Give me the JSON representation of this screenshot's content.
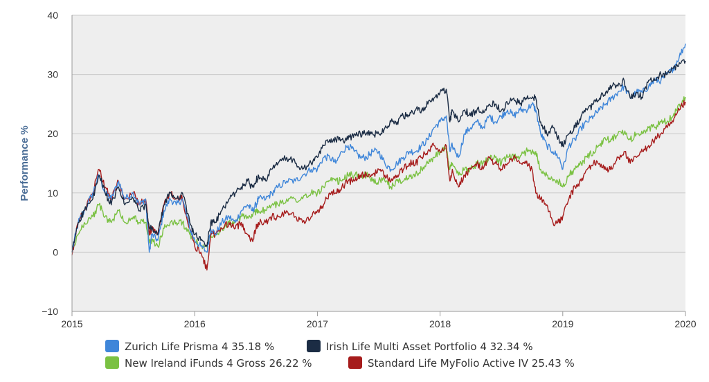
{
  "chart_data": {
    "type": "line",
    "title": "",
    "xlabel": "",
    "ylabel": "Performance %",
    "xlim": [
      2015,
      2020
    ],
    "ylim": [
      -10,
      40
    ],
    "x_ticks": [
      "2015",
      "2016",
      "2017",
      "2018",
      "2019",
      "2020"
    ],
    "y_ticks": [
      "40",
      "30",
      "20",
      "10",
      "0",
      "−10"
    ],
    "grid": true,
    "legend_position": "bottom",
    "series": [
      {
        "name": "Zurich Life Prisma 4 35.18 %",
        "color": "#3f86d9",
        "x": [
          2015.0,
          2015.05,
          2015.1,
          2015.17,
          2015.22,
          2015.27,
          2015.32,
          2015.38,
          2015.43,
          2015.5,
          2015.55,
          2015.6,
          2015.63,
          2015.65,
          2015.7,
          2015.75,
          2015.8,
          2015.85,
          2015.9,
          2015.96,
          2016.0,
          2016.05,
          2016.1,
          2016.13,
          2016.17,
          2016.22,
          2016.28,
          2016.33,
          2016.38,
          2016.43,
          2016.47,
          2016.5,
          2016.52,
          2016.58,
          2016.63,
          2016.68,
          2016.75,
          2016.82,
          2016.88,
          2016.95,
          2017.0,
          2017.05,
          2017.1,
          2017.15,
          2017.2,
          2017.25,
          2017.3,
          2017.35,
          2017.4,
          2017.45,
          2017.5,
          2017.55,
          2017.6,
          2017.65,
          2017.7,
          2017.75,
          2017.8,
          2017.85,
          2017.9,
          2017.95,
          2018.0,
          2018.05,
          2018.08,
          2018.1,
          2018.15,
          2018.2,
          2018.25,
          2018.3,
          2018.35,
          2018.4,
          2018.45,
          2018.5,
          2018.55,
          2018.6,
          2018.65,
          2018.7,
          2018.75,
          2018.78,
          2018.82,
          2018.87,
          2018.92,
          2018.97,
          2019.0,
          2019.05,
          2019.1,
          2019.15,
          2019.2,
          2019.25,
          2019.3,
          2019.35,
          2019.4,
          2019.45,
          2019.5,
          2019.55,
          2019.6,
          2019.65,
          2019.7,
          2019.75,
          2019.8,
          2019.85,
          2019.9,
          2019.95,
          2020.0
        ],
        "y": [
          0,
          5,
          7,
          10,
          13,
          10,
          9,
          12,
          9,
          10,
          8,
          9,
          0,
          3,
          2,
          7,
          9,
          8,
          9,
          4,
          2,
          1,
          0,
          4,
          3,
          5,
          6,
          5,
          7,
          8,
          7,
          8,
          9,
          9,
          10,
          11,
          12,
          12,
          13,
          14,
          14,
          16,
          16,
          15,
          17,
          18,
          17,
          16,
          16,
          17,
          17,
          15,
          14,
          15,
          16,
          17,
          17,
          18,
          19,
          21,
          22,
          23,
          17,
          18,
          16,
          20,
          21,
          22,
          21,
          23,
          22,
          23,
          24,
          23,
          24,
          24,
          25,
          24,
          20,
          18,
          17,
          16,
          14,
          18,
          19,
          21,
          22,
          23,
          24,
          25,
          26,
          27,
          28,
          26,
          27,
          27,
          28,
          29,
          29,
          30,
          31,
          33,
          35.2
        ]
      },
      {
        "name": "Irish Life Multi Asset Portfolio 4 32.34 %",
        "color": "#1b2c44",
        "x": [
          2015.0,
          2015.05,
          2015.1,
          2015.17,
          2015.22,
          2015.27,
          2015.32,
          2015.38,
          2015.43,
          2015.5,
          2015.55,
          2015.6,
          2015.63,
          2015.65,
          2015.7,
          2015.75,
          2015.8,
          2015.85,
          2015.9,
          2015.96,
          2016.0,
          2016.05,
          2016.1,
          2016.13,
          2016.17,
          2016.22,
          2016.28,
          2016.33,
          2016.38,
          2016.43,
          2016.47,
          2016.5,
          2016.52,
          2016.58,
          2016.63,
          2016.68,
          2016.75,
          2016.82,
          2016.88,
          2016.95,
          2017.0,
          2017.05,
          2017.1,
          2017.15,
          2017.2,
          2017.25,
          2017.3,
          2017.35,
          2017.4,
          2017.45,
          2017.5,
          2017.55,
          2017.6,
          2017.65,
          2017.7,
          2017.75,
          2017.8,
          2017.85,
          2017.9,
          2017.95,
          2018.0,
          2018.05,
          2018.08,
          2018.1,
          2018.15,
          2018.2,
          2018.25,
          2018.3,
          2018.35,
          2018.4,
          2018.45,
          2018.5,
          2018.55,
          2018.6,
          2018.65,
          2018.7,
          2018.75,
          2018.78,
          2018.82,
          2018.87,
          2018.92,
          2018.97,
          2019.0,
          2019.05,
          2019.1,
          2019.15,
          2019.2,
          2019.25,
          2019.3,
          2019.35,
          2019.4,
          2019.45,
          2019.5,
          2019.55,
          2019.6,
          2019.65,
          2019.7,
          2019.75,
          2019.8,
          2019.85,
          2019.9,
          2019.95,
          2020.0
        ],
        "y": [
          0,
          5,
          7,
          9,
          13,
          10,
          8,
          11,
          8,
          9,
          7,
          8,
          4,
          4,
          3,
          8,
          10,
          9,
          10,
          5,
          3,
          2,
          1,
          5,
          5,
          7,
          9,
          10,
          11,
          12,
          11,
          12,
          13,
          12,
          14,
          15,
          16,
          15,
          14,
          15,
          16,
          18,
          19,
          19,
          19,
          19,
          20,
          20,
          20,
          20,
          20,
          21,
          22,
          22,
          23,
          23,
          24,
          24,
          25,
          26,
          27,
          27.5,
          22,
          24,
          22,
          24,
          23,
          24,
          24,
          25,
          25,
          24,
          25,
          26,
          25,
          26,
          26,
          26,
          22,
          20,
          21,
          19,
          18,
          20,
          21,
          23,
          24,
          25,
          26,
          27,
          28,
          28,
          29,
          26,
          27,
          26,
          29,
          29,
          30,
          30,
          31,
          32,
          32.3
        ]
      },
      {
        "name": "New Ireland iFunds 4 Gross 26.22 %",
        "color": "#7ac142",
        "x": [
          2015.0,
          2015.05,
          2015.1,
          2015.17,
          2015.22,
          2015.27,
          2015.32,
          2015.38,
          2015.43,
          2015.5,
          2015.55,
          2015.6,
          2015.63,
          2015.65,
          2015.7,
          2015.75,
          2015.8,
          2015.85,
          2015.9,
          2015.96,
          2016.0,
          2016.05,
          2016.1,
          2016.13,
          2016.17,
          2016.22,
          2016.28,
          2016.33,
          2016.38,
          2016.43,
          2016.47,
          2016.5,
          2016.52,
          2016.58,
          2016.63,
          2016.68,
          2016.75,
          2016.82,
          2016.88,
          2016.95,
          2017.0,
          2017.05,
          2017.1,
          2017.15,
          2017.2,
          2017.25,
          2017.3,
          2017.35,
          2017.4,
          2017.45,
          2017.5,
          2017.55,
          2017.6,
          2017.65,
          2017.7,
          2017.75,
          2017.8,
          2017.85,
          2017.9,
          2017.95,
          2018.0,
          2018.05,
          2018.08,
          2018.1,
          2018.15,
          2018.2,
          2018.25,
          2018.3,
          2018.35,
          2018.4,
          2018.45,
          2018.5,
          2018.55,
          2018.6,
          2018.65,
          2018.7,
          2018.75,
          2018.78,
          2018.82,
          2018.87,
          2018.92,
          2018.97,
          2019.0,
          2019.05,
          2019.1,
          2019.15,
          2019.2,
          2019.25,
          2019.3,
          2019.35,
          2019.4,
          2019.45,
          2019.5,
          2019.55,
          2019.6,
          2019.65,
          2019.7,
          2019.75,
          2019.8,
          2019.85,
          2019.9,
          2019.95,
          2020.0
        ],
        "y": [
          0,
          3,
          5,
          6,
          8,
          6,
          5,
          7,
          5,
          6,
          5,
          5,
          2,
          2,
          1,
          4,
          5,
          5,
          5,
          3,
          2,
          1,
          1,
          3,
          3,
          4,
          5,
          5,
          6,
          6,
          6,
          7,
          7,
          7,
          8,
          8,
          9,
          9,
          9,
          10,
          10,
          11,
          12,
          12,
          12,
          13,
          13,
          13,
          13,
          12,
          12,
          12,
          11,
          12,
          12,
          13,
          13,
          14,
          15,
          16,
          17,
          17.5,
          14,
          15,
          13,
          14,
          14,
          15,
          15,
          16,
          16,
          15,
          16,
          16,
          16,
          17,
          17,
          17,
          14,
          13,
          12,
          12,
          11,
          13,
          14,
          15,
          16,
          17,
          18,
          19,
          19,
          20,
          20,
          19,
          20,
          20,
          21,
          21,
          22,
          22,
          23,
          25,
          26.2
        ]
      },
      {
        "name": "Standard Life MyFolio Active IV 25.43 %",
        "color": "#a61c1c",
        "x": [
          2015.0,
          2015.05,
          2015.1,
          2015.17,
          2015.22,
          2015.27,
          2015.32,
          2015.38,
          2015.43,
          2015.5,
          2015.55,
          2015.6,
          2015.63,
          2015.65,
          2015.7,
          2015.75,
          2015.8,
          2015.85,
          2015.9,
          2015.96,
          2016.0,
          2016.05,
          2016.1,
          2016.13,
          2016.17,
          2016.22,
          2016.28,
          2016.33,
          2016.38,
          2016.43,
          2016.47,
          2016.5,
          2016.52,
          2016.58,
          2016.63,
          2016.68,
          2016.75,
          2016.82,
          2016.88,
          2016.95,
          2017.0,
          2017.05,
          2017.1,
          2017.15,
          2017.2,
          2017.25,
          2017.3,
          2017.35,
          2017.4,
          2017.45,
          2017.5,
          2017.55,
          2017.6,
          2017.65,
          2017.7,
          2017.75,
          2017.8,
          2017.85,
          2017.9,
          2017.95,
          2018.0,
          2018.05,
          2018.08,
          2018.1,
          2018.15,
          2018.2,
          2018.25,
          2018.3,
          2018.35,
          2018.4,
          2018.45,
          2018.5,
          2018.55,
          2018.6,
          2018.65,
          2018.7,
          2018.75,
          2018.78,
          2018.82,
          2018.87,
          2018.92,
          2018.97,
          2019.0,
          2019.05,
          2019.1,
          2019.15,
          2019.2,
          2019.25,
          2019.3,
          2019.35,
          2019.4,
          2019.45,
          2019.5,
          2019.55,
          2019.6,
          2019.65,
          2019.7,
          2019.75,
          2019.8,
          2019.85,
          2019.9,
          2019.95,
          2020.0
        ],
        "y": [
          -0.5,
          5,
          7,
          10,
          14,
          11,
          9,
          12,
          9,
          10,
          8,
          9,
          3,
          4,
          3,
          8,
          10,
          9,
          9,
          4,
          1,
          0,
          -3,
          3,
          3,
          4,
          5,
          4,
          5,
          3,
          2,
          4,
          5,
          5,
          6,
          6,
          7,
          6,
          5,
          6,
          7,
          8,
          10,
          10,
          11,
          12,
          12,
          13,
          13,
          13,
          14,
          13,
          12,
          13,
          14,
          15,
          15,
          16,
          17,
          18,
          17,
          18,
          12,
          14,
          11,
          13,
          14,
          15,
          14,
          16,
          15,
          14,
          15,
          16,
          15,
          15,
          14,
          10,
          9,
          8,
          5,
          5,
          6,
          9,
          11,
          12,
          14,
          15,
          15,
          14,
          14,
          16,
          17,
          15,
          16,
          17,
          18,
          19,
          20,
          21,
          22,
          24,
          25.4
        ]
      }
    ]
  }
}
